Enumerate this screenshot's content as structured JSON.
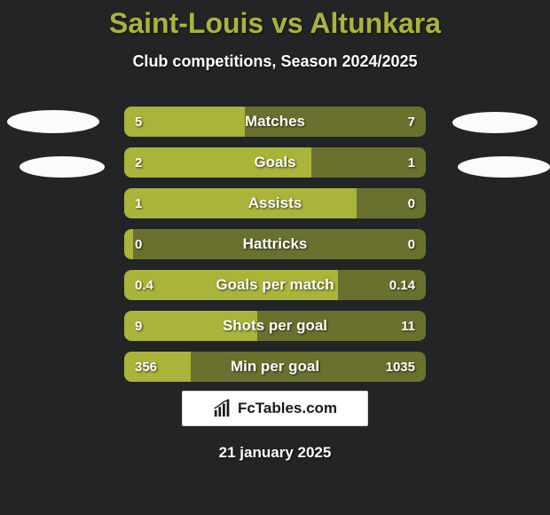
{
  "header": {
    "title": "Saint-Louis vs Altunkara",
    "subtitle": "Club competitions, Season 2024/2025",
    "title_color": "#aab33a",
    "subtitle_color": "#ffffff"
  },
  "page": {
    "background_color": "#222425"
  },
  "palette": {
    "fill_color": "#aab33a",
    "base_color": "#6a712e",
    "text_color": "#ffffff"
  },
  "bars": [
    {
      "label": "Matches",
      "left_value": "5",
      "right_value": "7",
      "fill_pct": 40
    },
    {
      "label": "Goals",
      "left_value": "2",
      "right_value": "1",
      "fill_pct": 62
    },
    {
      "label": "Assists",
      "left_value": "1",
      "right_value": "0",
      "fill_pct": 77
    },
    {
      "label": "Hattricks",
      "left_value": "0",
      "right_value": "0",
      "fill_pct": 3
    },
    {
      "label": "Goals per match",
      "left_value": "0.4",
      "right_value": "0.14",
      "fill_pct": 71
    },
    {
      "label": "Shots per goal",
      "left_value": "9",
      "right_value": "11",
      "fill_pct": 44
    },
    {
      "label": "Min per goal",
      "left_value": "356",
      "right_value": "1035",
      "fill_pct": 22
    }
  ],
  "branding": {
    "text": "FcTables.com",
    "box_bg": "#ffffff",
    "text_color": "#1a1a1a"
  },
  "footer": {
    "date": "21 january 2025"
  }
}
